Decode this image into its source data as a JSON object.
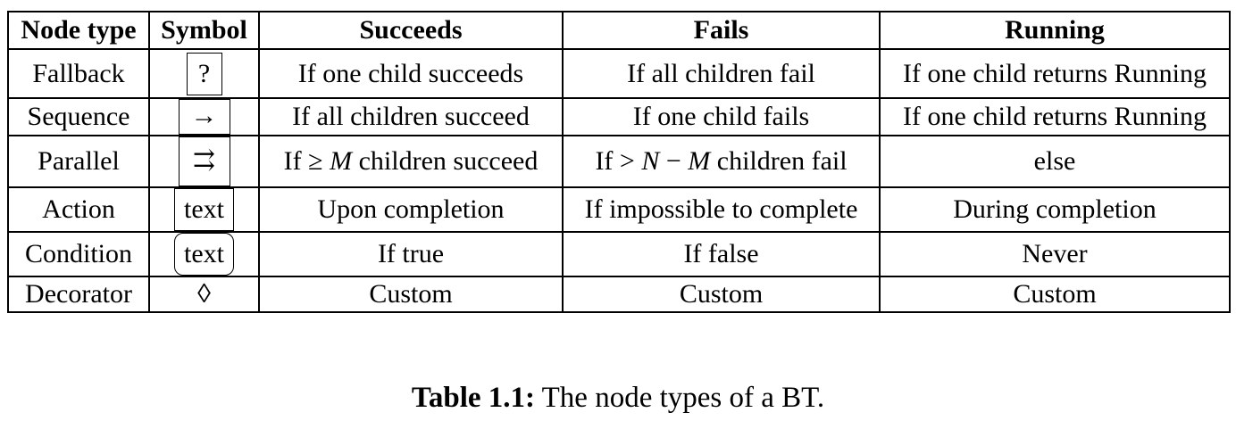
{
  "table": {
    "headers": [
      "Node type",
      "Symbol",
      "Succeeds",
      "Fails",
      "Running"
    ],
    "rows": [
      {
        "type": "Fallback",
        "symbol": "?",
        "succeeds": "If one child succeeds",
        "fails": "If all children fail",
        "running": "If one child returns Running"
      },
      {
        "type": "Sequence",
        "symbol": "→",
        "succeeds": "If all children succeed",
        "fails": "If one child fails",
        "running": "If one child returns Running"
      },
      {
        "type": "Parallel",
        "symbol": "⇉",
        "succeeds": {
          "pre": "If ≥ ",
          "var": "M",
          "post": " children succeed"
        },
        "fails": {
          "pre": "If > ",
          "var1": "N",
          "mid": " − ",
          "var2": "M",
          "post": " children fail"
        },
        "running": "else"
      },
      {
        "type": "Action",
        "symbol": "text",
        "succeeds": "Upon completion",
        "fails": "If impossible to complete",
        "running": "During completion"
      },
      {
        "type": "Condition",
        "symbol": "text",
        "succeeds": "If true",
        "fails": "If false",
        "running": "Never"
      },
      {
        "type": "Decorator",
        "symbol": "◊",
        "succeeds": "Custom",
        "fails": "Custom",
        "running": "Custom"
      }
    ]
  },
  "caption": {
    "label": "Table 1.1:",
    "text": " The node types of a BT."
  }
}
